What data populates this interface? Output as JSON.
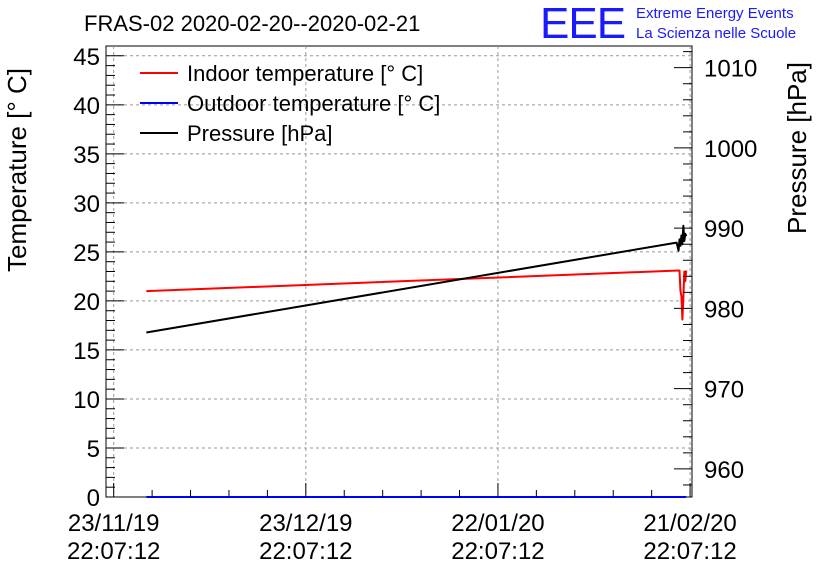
{
  "logo": {
    "mark": "EEE",
    "line1": "Extreme Energy Events",
    "line2": "La Scienza nelle Scuole"
  },
  "chart_data": {
    "type": "line",
    "title": "FRAS-02 2020-02-20--2020-02-21",
    "ylabel": "Temperature [° C]",
    "y2label": "Pressure [hPa]",
    "xlabel": "",
    "ylim": [
      0,
      46
    ],
    "y2lim": [
      956.5,
      1012.7
    ],
    "xlim": [
      -0.04,
      3.01
    ],
    "grid": true,
    "legend_position": "top-left",
    "yticks": [
      0,
      5,
      10,
      15,
      20,
      25,
      30,
      35,
      40,
      45
    ],
    "y2ticks": [
      960,
      970,
      980,
      990,
      1000,
      1010
    ],
    "xticks": [
      {
        "x": 0,
        "line1": "23/11/19",
        "line2": "22:07:12"
      },
      {
        "x": 1,
        "line1": "23/12/19",
        "line2": "22:07:12"
      },
      {
        "x": 2,
        "line1": "22/01/20",
        "line2": "22:07:12"
      },
      {
        "x": 3,
        "line1": "21/02/20",
        "line2": "22:07:12"
      }
    ],
    "series": [
      {
        "name": "Indoor temperature [° C]",
        "color": "#ff0000",
        "axis": "left",
        "x": [
          0.17,
          2.94,
          2.945,
          2.95,
          2.955,
          2.96,
          2.965,
          2.97,
          2.975,
          2.98
        ],
        "y": [
          21.0,
          23.1,
          23.1,
          21.0,
          20.5,
          18.1,
          20.3,
          23.0,
          22.0,
          23.1
        ]
      },
      {
        "name": "Outdoor temperature [° C]",
        "color": "#0000ff",
        "axis": "left",
        "x": [
          0.17,
          2.98
        ],
        "y": [
          0.0,
          0.0
        ]
      },
      {
        "name": "Pressure [hPa]",
        "color": "#000000",
        "axis": "right",
        "x": [
          0.17,
          2.93,
          2.94,
          2.945,
          2.95,
          2.955,
          2.96,
          2.965,
          2.97,
          2.975,
          2.98
        ],
        "y": [
          977.0,
          988.2,
          987.2,
          988.6,
          987.8,
          989.1,
          988.0,
          990.3,
          988.4,
          989.3,
          989.0
        ]
      }
    ]
  }
}
